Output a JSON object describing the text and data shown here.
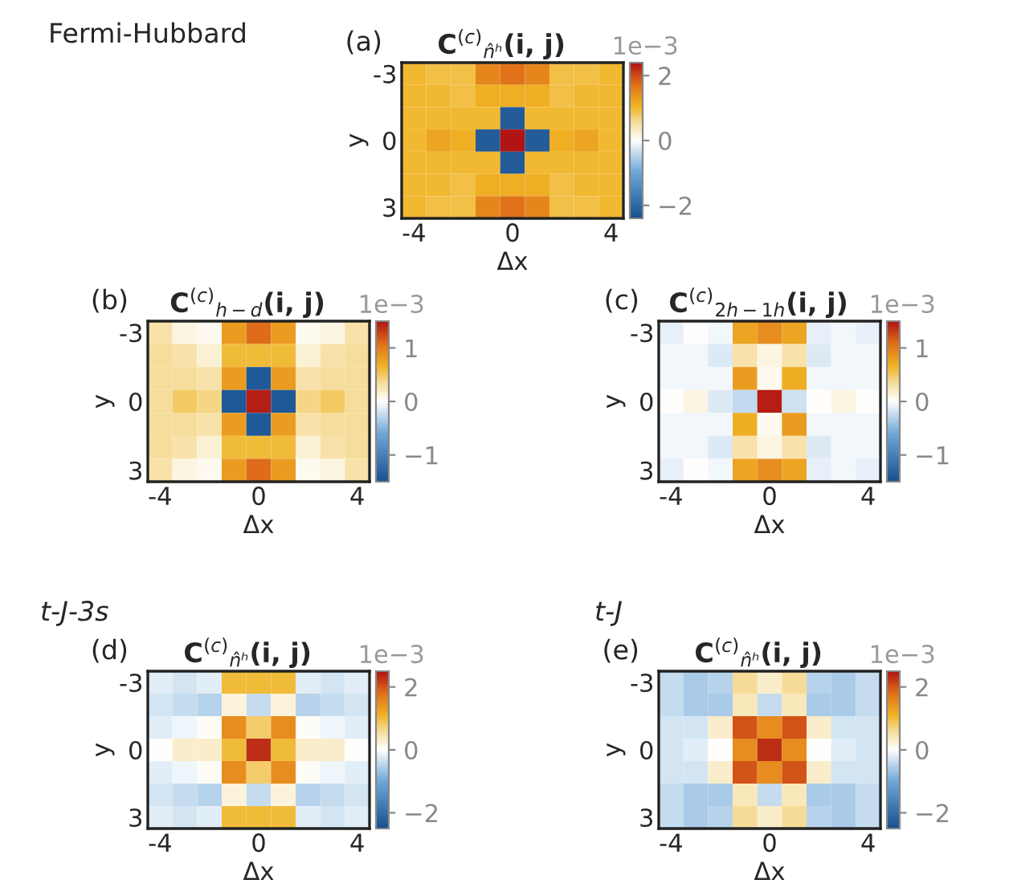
{
  "chart_data": [
    {
      "type": "heatmap",
      "title": "C$^{(c)}$$_{n̂ʰ}$(i, j)",
      "xlabel": "Δx",
      "ylabel": "y",
      "clabel": "1e−3",
      "annotations": [
        "Fermi-Hubbard",
        "(a)"
      ],
      "categories": [
        "-4",
        null,
        null,
        null,
        "0",
        null,
        null,
        null,
        "4"
      ],
      "y_categories": [
        "-3",
        null,
        null,
        "0",
        null,
        null,
        "3"
      ],
      "clim": [
        -2.4,
        2.4
      ],
      "cticks": [
        -2,
        0,
        2
      ],
      "cells": [
        [
          1.0,
          0.9,
          0.9,
          1.5,
          1.7,
          1.5,
          0.9,
          0.9,
          1.0
        ],
        [
          1.0,
          1.0,
          0.9,
          1.1,
          1.1,
          1.1,
          0.9,
          1.0,
          1.0
        ],
        [
          1.0,
          1.0,
          1.0,
          1.0,
          -2.2,
          1.0,
          1.0,
          1.0,
          1.0
        ],
        [
          1.0,
          1.2,
          1.1,
          -2.2,
          2.4,
          -2.2,
          1.1,
          1.2,
          1.0
        ],
        [
          1.0,
          1.0,
          1.0,
          1.0,
          -2.2,
          1.0,
          1.0,
          1.0,
          1.0
        ],
        [
          1.0,
          1.0,
          0.9,
          1.1,
          1.1,
          1.1,
          0.9,
          1.0,
          1.0
        ],
        [
          1.0,
          0.9,
          0.9,
          1.5,
          1.7,
          1.5,
          0.9,
          0.9,
          1.0
        ]
      ]
    },
    {
      "type": "heatmap",
      "title": "C$^{(c)}$$_{h−d}$(i, j)",
      "xlabel": "Δx",
      "ylabel": "y",
      "clabel": "1e−3",
      "annotations": [
        "(b)"
      ],
      "categories": [
        "-4",
        null,
        null,
        null,
        "0",
        null,
        null,
        null,
        "4"
      ],
      "y_categories": [
        "-3",
        null,
        null,
        "0",
        null,
        null,
        "3"
      ],
      "clim": [
        -1.5,
        1.5
      ],
      "cticks": [
        -1,
        0,
        1
      ],
      "cells": [
        [
          0.3,
          0.1,
          0.05,
          0.8,
          1.1,
          0.8,
          0.05,
          0.1,
          0.3
        ],
        [
          0.35,
          0.3,
          0.15,
          0.6,
          0.6,
          0.6,
          0.15,
          0.3,
          0.35
        ],
        [
          0.35,
          0.35,
          0.3,
          0.8,
          -1.4,
          0.8,
          0.3,
          0.35,
          0.35
        ],
        [
          0.35,
          0.5,
          0.4,
          -1.4,
          1.45,
          -1.4,
          0.4,
          0.5,
          0.35
        ],
        [
          0.35,
          0.35,
          0.3,
          0.8,
          -1.4,
          0.8,
          0.3,
          0.35,
          0.35
        ],
        [
          0.35,
          0.3,
          0.15,
          0.6,
          0.6,
          0.6,
          0.15,
          0.3,
          0.35
        ],
        [
          0.3,
          0.1,
          0.05,
          0.8,
          1.1,
          0.8,
          0.05,
          0.1,
          0.3
        ]
      ]
    },
    {
      "type": "heatmap",
      "title": "C$^{(c)}$$_{2h−1h}$(i, j)",
      "xlabel": "Δx",
      "ylabel": "y",
      "clabel": "1e−3",
      "annotations": [
        "(c)"
      ],
      "categories": [
        "-4",
        null,
        null,
        null,
        "0",
        null,
        null,
        null,
        "4"
      ],
      "y_categories": [
        "-3",
        null,
        null,
        "0",
        null,
        null,
        "3"
      ],
      "clim": [
        -1.5,
        1.5
      ],
      "cticks": [
        -1,
        0,
        1
      ],
      "cells": [
        [
          -0.1,
          0.0,
          -0.05,
          0.75,
          0.9,
          0.75,
          -0.1,
          -0.05,
          -0.1
        ],
        [
          -0.05,
          -0.05,
          -0.15,
          0.3,
          0.1,
          0.3,
          -0.15,
          -0.05,
          -0.05
        ],
        [
          -0.05,
          -0.05,
          -0.05,
          0.8,
          0.05,
          0.7,
          -0.05,
          -0.05,
          -0.05
        ],
        [
          0.0,
          0.1,
          -0.15,
          -0.25,
          1.45,
          -0.2,
          0.0,
          0.1,
          0.0
        ],
        [
          -0.05,
          -0.05,
          -0.05,
          0.7,
          0.05,
          0.8,
          -0.05,
          -0.05,
          -0.05
        ],
        [
          -0.05,
          -0.05,
          -0.15,
          0.3,
          0.1,
          0.3,
          -0.15,
          -0.05,
          -0.05
        ],
        [
          -0.1,
          0.0,
          -0.05,
          0.75,
          0.9,
          0.75,
          -0.1,
          -0.05,
          -0.1
        ]
      ]
    },
    {
      "type": "heatmap",
      "title": "C$^{(c)}$$_{n̂ʰ}$(i, j)",
      "xlabel": "Δx",
      "ylabel": "y",
      "clabel": "1e−3",
      "annotations": [
        "t-J-3s",
        "(d)"
      ],
      "categories": [
        "-4",
        null,
        null,
        null,
        "0",
        null,
        null,
        null,
        "4"
      ],
      "y_categories": [
        "-3",
        null,
        null,
        "0",
        null,
        null,
        "3"
      ],
      "clim": [
        -2.5,
        2.5
      ],
      "cticks": [
        -2,
        0,
        2
      ],
      "cells": [
        [
          -0.2,
          -0.3,
          -0.2,
          1.0,
          1.0,
          1.0,
          -0.2,
          -0.3,
          -0.2
        ],
        [
          -0.3,
          -0.4,
          -0.5,
          0.2,
          -0.4,
          0.2,
          -0.5,
          -0.4,
          -0.3
        ],
        [
          -0.2,
          -0.1,
          0.05,
          1.5,
          0.8,
          1.5,
          0.05,
          -0.1,
          -0.2
        ],
        [
          0.0,
          0.3,
          0.3,
          1.0,
          2.3,
          1.0,
          0.3,
          0.3,
          0.0
        ],
        [
          -0.2,
          -0.1,
          0.05,
          1.5,
          0.8,
          1.5,
          0.05,
          -0.1,
          -0.2
        ],
        [
          -0.3,
          -0.4,
          -0.5,
          0.2,
          -0.4,
          0.2,
          -0.5,
          -0.4,
          -0.3
        ],
        [
          -0.2,
          -0.3,
          -0.2,
          1.0,
          1.0,
          1.0,
          -0.2,
          -0.3,
          -0.2
        ]
      ]
    },
    {
      "type": "heatmap",
      "title": "C$^{(c)}$$_{n̂ʰ}$(i, j)",
      "xlabel": "Δx",
      "ylabel": "y",
      "clabel": "1e−3",
      "annotations": [
        "t-J",
        "(e)"
      ],
      "categories": [
        "-4",
        null,
        null,
        null,
        "0",
        null,
        null,
        null,
        "4"
      ],
      "y_categories": [
        "-3",
        null,
        null,
        "0",
        null,
        null,
        "3"
      ],
      "clim": [
        -2.5,
        2.5
      ],
      "cticks": [
        -2,
        0,
        2
      ],
      "cells": [
        [
          -0.4,
          -0.6,
          -0.5,
          0.6,
          0.3,
          0.6,
          -0.5,
          -0.6,
          -0.4
        ],
        [
          -0.4,
          -0.6,
          -0.6,
          0.4,
          -0.4,
          0.4,
          -0.6,
          -0.6,
          -0.4
        ],
        [
          -0.3,
          -0.3,
          0.3,
          2.0,
          1.5,
          2.0,
          0.3,
          -0.3,
          -0.3
        ],
        [
          -0.3,
          -0.2,
          0.0,
          1.5,
          2.3,
          1.5,
          0.0,
          -0.2,
          -0.3
        ],
        [
          -0.3,
          -0.3,
          0.3,
          2.0,
          1.5,
          2.0,
          0.3,
          -0.3,
          -0.3
        ],
        [
          -0.4,
          -0.6,
          -0.6,
          0.4,
          -0.4,
          0.4,
          -0.6,
          -0.6,
          -0.4
        ],
        [
          -0.4,
          -0.6,
          -0.5,
          0.6,
          0.3,
          0.6,
          -0.5,
          -0.6,
          -0.4
        ]
      ]
    }
  ]
}
